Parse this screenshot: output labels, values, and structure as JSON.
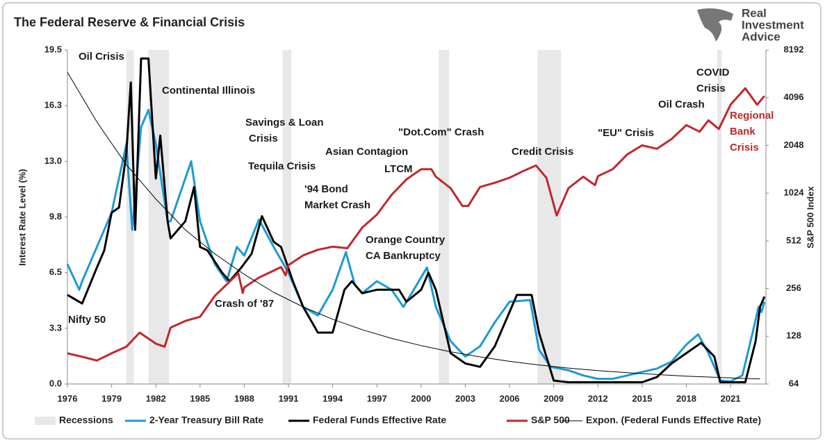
{
  "logo": {
    "lines": [
      "Real",
      "Investment",
      "Advice"
    ]
  },
  "chart_data": {
    "type": "line",
    "title": "The Federal Reserve & Financial Crisis",
    "y_label": "Interest Rate Level (%)",
    "y2_label": "S&P 500 Index",
    "xlim": [
      1976,
      2023.4
    ],
    "xticks": [
      1976,
      1979,
      1982,
      1985,
      1988,
      1991,
      1994,
      1997,
      2000,
      2003,
      2006,
      2009,
      2012,
      2015,
      2018,
      2021
    ],
    "ylim": [
      0,
      19.5
    ],
    "yticks": [
      {
        "value": 0,
        "label": "0.0"
      },
      {
        "value": 3.25,
        "label": "3.3"
      },
      6.5,
      {
        "value": 9.75,
        "label": "9.8"
      },
      {
        "value": 13,
        "label": "13.0"
      },
      {
        "value": 16.25,
        "label": "16.3"
      },
      19.5
    ],
    "y2lim": [
      64,
      8192
    ],
    "y2ticks": [
      64,
      128,
      256,
      512,
      1024,
      2048,
      4096,
      8192
    ],
    "y2_log_base": 2,
    "grid": false,
    "recessions": {
      "name": "Recessions",
      "color": "#e8e8e8",
      "periods": [
        [
          1980.0,
          1980.5
        ],
        [
          1981.5,
          1982.9
        ],
        [
          1990.6,
          1991.2
        ],
        [
          2001.2,
          2001.9
        ],
        [
          2007.9,
          2009.5
        ],
        [
          2020.1,
          2020.4
        ]
      ]
    },
    "series": [
      {
        "name": "2-Year Treasury Bill Rate",
        "color": "#1a9ad6",
        "width": 3,
        "x": [
          1976,
          1976.8,
          1977,
          1978,
          1979,
          1980,
          1980.4,
          1981,
          1981.5,
          1982,
          1982.8,
          1983,
          1984.4,
          1985,
          1986,
          1986.8,
          1987.5,
          1988,
          1989,
          1990,
          1991,
          1992,
          1993,
          1994,
          1994.9,
          1995.5,
          1996,
          1997,
          1998,
          1998.8,
          1999.5,
          2000.4,
          2001,
          2002,
          2003,
          2004,
          2005,
          2006,
          2007.4,
          2008,
          2008.8,
          2010,
          2011,
          2012,
          2013,
          2014,
          2015,
          2016,
          2017,
          2018,
          2018.8,
          2019.5,
          2020.3,
          2021,
          2021.8,
          2022.5,
          2022.9,
          2023.1,
          2023.3
        ],
        "values": [
          7,
          5.5,
          6,
          8,
          10,
          14,
          9,
          15,
          16,
          14,
          9.5,
          9.5,
          13,
          9.5,
          7,
          6,
          8,
          7.5,
          9.6,
          8,
          6.5,
          4.5,
          4,
          5.5,
          7.7,
          5.8,
          5.3,
          6,
          5.5,
          4.5,
          5.5,
          6.8,
          4.5,
          2.5,
          1.6,
          2.2,
          3.6,
          4.8,
          4.9,
          2,
          1,
          0.8,
          0.5,
          0.3,
          0.3,
          0.5,
          0.7,
          0.9,
          1.3,
          2.3,
          2.9,
          1.8,
          0.2,
          0.15,
          0.5,
          3,
          4.5,
          4.2,
          4.8
        ]
      },
      {
        "name": "Federal Funds Effective Rate",
        "color": "#000000",
        "width": 3,
        "x": [
          1976,
          1977,
          1978,
          1978.5,
          1979,
          1979.5,
          1980,
          1980.3,
          1980.6,
          1981,
          1981.5,
          1982,
          1982.3,
          1982.8,
          1983,
          1984,
          1984.6,
          1985,
          1985.5,
          1986.5,
          1987,
          1987.8,
          1988.5,
          1989.2,
          1990,
          1990.5,
          1991.3,
          1992,
          1993,
          1994,
          1994.8,
          1995.3,
          1996,
          1997,
          1998.5,
          1999,
          2000,
          2000.5,
          2001,
          2002,
          2003,
          2004,
          2005,
          2006,
          2006.5,
          2007.5,
          2008,
          2009,
          2010,
          2015,
          2016,
          2017,
          2018,
          2019,
          2019.9,
          2020.3,
          2021,
          2022,
          2022.7,
          2023,
          2023.3
        ],
        "values": [
          5.2,
          4.7,
          6.8,
          7.8,
          10,
          10.3,
          13.5,
          17.6,
          9,
          19,
          19,
          12,
          14.5,
          9.5,
          8.5,
          9.5,
          11.5,
          8,
          7.8,
          6.5,
          6,
          6.8,
          7.6,
          9.8,
          8.3,
          8,
          6,
          4.5,
          3,
          3,
          5.5,
          6,
          5.3,
          5.5,
          5.5,
          4.8,
          5.5,
          6.5,
          5.5,
          1.8,
          1.2,
          1,
          2.2,
          4.2,
          5.2,
          5.2,
          3,
          0.2,
          0.1,
          0.1,
          0.4,
          1.2,
          1.8,
          2.4,
          1.6,
          0.1,
          0.1,
          0.1,
          2.5,
          4.5,
          5.1
        ]
      },
      {
        "name": "S&P 500",
        "color": "#c0272d",
        "width": 3,
        "axis": "y2",
        "x": [
          1976,
          1977,
          1978,
          1979,
          1980,
          1980.9,
          1982,
          1982.6,
          1983,
          1984,
          1985,
          1986,
          1987.6,
          1987.9,
          1988,
          1989,
          1990.5,
          1990.8,
          1991,
          1992,
          1993,
          1994,
          1995,
          1996,
          1997,
          1998,
          1999,
          2000,
          2000.7,
          2001,
          2002,
          2002.8,
          2003.2,
          2004,
          2005,
          2006,
          2007,
          2007.8,
          2008.5,
          2009.2,
          2010,
          2011,
          2011.8,
          2012,
          2013,
          2014,
          2015,
          2016,
          2017,
          2018,
          2018.9,
          2019.5,
          2020.2,
          2021,
          2022,
          2022.8,
          2023.3
        ],
        "values": [
          100,
          95,
          90,
          100,
          110,
          135,
          115,
          110,
          145,
          160,
          170,
          230,
          320,
          240,
          260,
          300,
          350,
          310,
          360,
          415,
          450,
          470,
          460,
          620,
          750,
          1000,
          1250,
          1450,
          1450,
          1300,
          1100,
          850,
          850,
          1120,
          1190,
          1280,
          1420,
          1530,
          1280,
          740,
          1100,
          1300,
          1150,
          1310,
          1450,
          1800,
          2050,
          1950,
          2250,
          2750,
          2500,
          2950,
          2600,
          3700,
          4700,
          3700,
          4200
        ]
      },
      {
        "name": "Expon. (Federal Funds Effective Rate)",
        "color": "#000000",
        "width": 1,
        "x": [
          1976,
          1978,
          1980,
          1982,
          1984,
          1986,
          1988,
          1990,
          1992,
          1994,
          1996,
          1998,
          2000,
          2002,
          2004,
          2006,
          2008,
          2010,
          2012,
          2014,
          2016,
          2018,
          2020,
          2022,
          2023
        ],
        "values": [
          18.2,
          15.3,
          12.8,
          10.8,
          9,
          7.6,
          6.4,
          5.35,
          4.5,
          3.78,
          3.17,
          2.66,
          2.24,
          1.88,
          1.58,
          1.32,
          1.11,
          0.93,
          0.78,
          0.66,
          0.55,
          0.46,
          0.39,
          0.32,
          0.3
        ]
      }
    ],
    "annotations": [
      {
        "lines": [
          "Oil Crisis"
        ]
      },
      {
        "lines": [
          "Continental Illinois"
        ]
      },
      {
        "lines": [
          "Savings & Loan",
          "Crisis"
        ]
      },
      {
        "lines": [
          "Tequila Crisis"
        ]
      },
      {
        "lines": [
          "'94 Bond",
          "Market Crash"
        ]
      },
      {
        "lines": [
          "Asian Contagion"
        ]
      },
      {
        "lines": [
          "LTCM"
        ]
      },
      {
        "lines": [
          "\"Dot.Com\" Crash"
        ]
      },
      {
        "lines": [
          "Orange Country",
          "CA Bankruptcy"
        ]
      },
      {
        "lines": [
          "Credit Crisis"
        ]
      },
      {
        "lines": [
          "\"EU\" Crisis"
        ]
      },
      {
        "lines": [
          "Oil Crash"
        ]
      },
      {
        "lines": [
          "COVID",
          "Crisis"
        ]
      },
      {
        "lines": [
          "Regional",
          "Bank",
          "Crisis"
        ],
        "color": "#c0272d"
      },
      {
        "lines": [
          "Nifty 50"
        ]
      },
      {
        "lines": [
          "Crash of '87"
        ]
      }
    ]
  }
}
